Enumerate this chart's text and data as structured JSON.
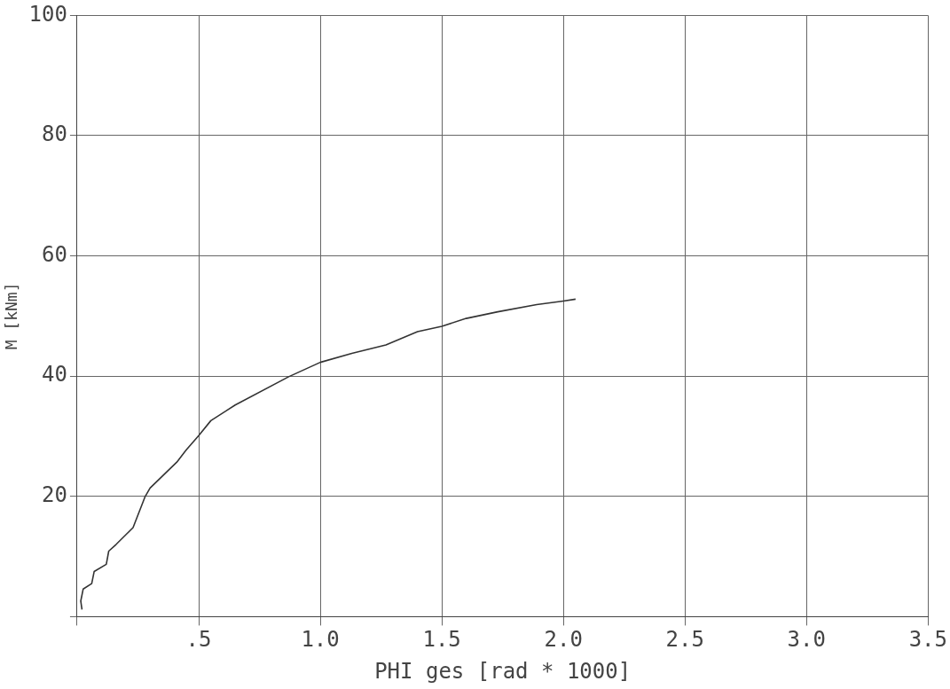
{
  "chart_data": {
    "type": "line",
    "xlabel": "PHI ges [rad * 1000]",
    "ylabel": "M [kNm]",
    "xlim": [
      0,
      3.5
    ],
    "ylim": [
      0,
      100
    ],
    "xticks": [
      {
        "value": 0,
        "label": null
      },
      {
        "value": 0.5,
        "label": ".5"
      },
      {
        "value": 1,
        "label": "1.0"
      },
      {
        "value": 1.5,
        "label": "1.5"
      },
      {
        "value": 2,
        "label": "2.0"
      },
      {
        "value": 2.5,
        "label": "2.5"
      },
      {
        "value": 3,
        "label": "3.0"
      },
      {
        "value": 3.5,
        "label": "3.5"
      }
    ],
    "yticks": [
      {
        "value": 0,
        "label": null
      },
      20,
      40,
      60,
      80,
      100
    ],
    "grid": true,
    "legend": false,
    "marker": "none",
    "line_style": "solid",
    "series": [
      {
        "color": "#333333",
        "x": [
          0.02,
          0.015,
          0.025,
          0.06,
          0.07,
          0.12,
          0.13,
          0.16,
          0.23,
          0.28,
          0.3,
          0.41,
          0.45,
          0.5,
          0.55,
          0.65,
          0.87,
          1.0,
          1.13,
          1.27,
          1.4,
          1.5,
          1.6,
          1.73,
          1.89,
          2.0,
          2.05
        ],
        "values": [
          1.2,
          2.6,
          4.6,
          5.5,
          7.5,
          8.7,
          10.9,
          12.0,
          14.8,
          20.0,
          21.4,
          25.7,
          27.8,
          30.1,
          32.6,
          35.2,
          39.9,
          42.3,
          43.8,
          45.2,
          47.4,
          48.3,
          49.6,
          50.7,
          51.9,
          52.5,
          52.8
        ]
      }
    ]
  }
}
